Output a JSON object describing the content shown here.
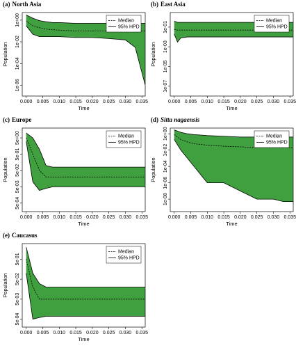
{
  "chart_data": [
    {
      "type": "line",
      "panel_label": "(a)",
      "title": "North Asia",
      "title_italic": false,
      "x_label": "Time",
      "y_label": "Population",
      "log_y": true,
      "legend": "top-right",
      "band_color": "#1f8f1f",
      "x": [
        0,
        0.002,
        0.004,
        0.006,
        0.008,
        0.01,
        0.015,
        0.02,
        0.025,
        0.03,
        0.033,
        0.036
      ],
      "xlim": [
        -0.0012,
        0.036
      ],
      "xticks": [
        {
          "value": 0,
          "label": "0.000"
        },
        {
          "value": 0.005,
          "label": "0.005"
        },
        {
          "value": 0.01,
          "label": "0.010"
        },
        {
          "value": 0.015,
          "label": "0.015"
        },
        {
          "value": 0.02,
          "label": "0.020"
        },
        {
          "value": 0.025,
          "label": "0.025"
        },
        {
          "value": 0.03,
          "label": "0.030"
        },
        {
          "value": 0.035,
          "label": "0.035"
        }
      ],
      "ylim": [
        1e-07,
        5
      ],
      "yticks": [
        {
          "value": 1,
          "label": "1e+00"
        },
        {
          "value": 0.01,
          "label": "1e-02"
        },
        {
          "value": 0.0001,
          "label": "1e-04"
        },
        {
          "value": 1e-06,
          "label": "1e-06"
        }
      ],
      "series": [
        {
          "name": "Median",
          "color": "#000000",
          "dash": true,
          "values": [
            0.8,
            0.3,
            0.2,
            0.15,
            0.13,
            0.12,
            0.1,
            0.1,
            0.1,
            0.1,
            0.1,
            0.1
          ]
        },
        {
          "name": "95% HPD",
          "color": "#000000",
          "dash": false,
          "upper": [
            3,
            1.5,
            0.9,
            0.7,
            0.6,
            0.6,
            0.5,
            0.5,
            0.5,
            0.5,
            0.5,
            0.5
          ],
          "lower": [
            0.3,
            0.05,
            0.03,
            0.03,
            0.03,
            0.03,
            0.025,
            0.025,
            0.02,
            0.015,
            0.003,
            1e-06
          ]
        }
      ]
    },
    {
      "type": "line",
      "panel_label": "(b)",
      "title": "East Asia",
      "title_italic": false,
      "x_label": "Time",
      "y_label": "Population",
      "log_y": true,
      "legend": "top-right",
      "band_color": "#1f8f1f",
      "x": [
        0,
        0.001,
        0.002,
        0.004,
        0.006,
        0.008,
        0.01,
        0.015,
        0.02,
        0.025,
        0.03,
        0.036
      ],
      "xlim": [
        -0.0012,
        0.036
      ],
      "xticks": [
        {
          "value": 0,
          "label": "0.000"
        },
        {
          "value": 0.005,
          "label": "0.005"
        },
        {
          "value": 0.01,
          "label": "0.010"
        },
        {
          "value": 0.015,
          "label": "0.015"
        },
        {
          "value": 0.02,
          "label": "0.020"
        },
        {
          "value": 0.025,
          "label": "0.025"
        },
        {
          "value": 0.03,
          "label": "0.030"
        },
        {
          "value": 0.035,
          "label": "0.035"
        }
      ],
      "ylim": [
        1e-08,
        3
      ],
      "yticks": [
        {
          "value": 0.1,
          "label": "1e-01"
        },
        {
          "value": 0.001,
          "label": "1e-03"
        },
        {
          "value": 1e-05,
          "label": "1e-05"
        },
        {
          "value": 1e-07,
          "label": "1e-07"
        }
      ],
      "series": [
        {
          "name": "Median",
          "color": "#000000",
          "dash": true,
          "values": [
            0.06,
            0.05,
            0.05,
            0.05,
            0.05,
            0.05,
            0.05,
            0.05,
            0.05,
            0.05,
            0.05,
            0.05
          ]
        },
        {
          "name": "95% HPD",
          "color": "#000000",
          "dash": false,
          "upper": [
            0.4,
            0.3,
            0.3,
            0.3,
            0.3,
            0.3,
            0.3,
            0.3,
            0.3,
            0.3,
            0.3,
            0.3
          ],
          "lower": [
            0.02,
            0.003,
            0.008,
            0.01,
            0.01,
            0.01,
            0.01,
            0.01,
            0.01,
            0.01,
            0.01,
            0.01
          ]
        }
      ]
    },
    {
      "type": "line",
      "panel_label": "(c)",
      "title": "Europe",
      "title_italic": false,
      "x_label": "Time",
      "y_label": "Population",
      "log_y": true,
      "legend": "top-right",
      "band_color": "#1f8f1f",
      "x": [
        0,
        0.002,
        0.004,
        0.006,
        0.008,
        0.01,
        0.015,
        0.02,
        0.025,
        0.03,
        0.033,
        0.036
      ],
      "xlim": [
        -0.0012,
        0.036
      ],
      "xticks": [
        {
          "value": 0,
          "label": "0.000"
        },
        {
          "value": 0.005,
          "label": "0.005"
        },
        {
          "value": 0.01,
          "label": "0.010"
        },
        {
          "value": 0.015,
          "label": "0.015"
        },
        {
          "value": 0.02,
          "label": "0.020"
        },
        {
          "value": 0.025,
          "label": "0.025"
        },
        {
          "value": 0.03,
          "label": "0.030"
        },
        {
          "value": 0.035,
          "label": "0.035"
        }
      ],
      "ylim": [
        0.00015,
        20
      ],
      "yticks": [
        {
          "value": 5,
          "label": "5e+00"
        },
        {
          "value": 0.5,
          "label": "5e-01"
        },
        {
          "value": 0.05,
          "label": "5e-02"
        },
        {
          "value": 0.005,
          "label": "5e-03"
        },
        {
          "value": 0.0005,
          "label": "5e-04"
        }
      ],
      "series": [
        {
          "name": "Median",
          "color": "#000000",
          "dash": true,
          "values": [
            5,
            0.5,
            0.05,
            0.02,
            0.02,
            0.02,
            0.02,
            0.02,
            0.02,
            0.02,
            0.02,
            0.02
          ]
        },
        {
          "name": "95% HPD",
          "color": "#000000",
          "dash": false,
          "upper": [
            10,
            5,
            1,
            0.1,
            0.08,
            0.08,
            0.08,
            0.08,
            0.08,
            0.08,
            0.08,
            0.08
          ],
          "lower": [
            3,
            0.01,
            0.003,
            0.004,
            0.005,
            0.005,
            0.005,
            0.005,
            0.005,
            0.005,
            0.005,
            0.005
          ]
        }
      ]
    },
    {
      "type": "line",
      "panel_label": "(d)",
      "title": "Sitta nagaensis",
      "title_italic": true,
      "x_label": "Time",
      "y_label": "Population",
      "log_y": true,
      "legend": "top-right",
      "band_color": "#1f8f1f",
      "x": [
        0,
        0.002,
        0.004,
        0.006,
        0.008,
        0.01,
        0.015,
        0.02,
        0.025,
        0.03,
        0.033,
        0.036
      ],
      "xlim": [
        -0.0012,
        0.036
      ],
      "xticks": [
        {
          "value": 0,
          "label": "0.000"
        },
        {
          "value": 0.005,
          "label": "0.005"
        },
        {
          "value": 0.01,
          "label": "0.010"
        },
        {
          "value": 0.015,
          "label": "0.015"
        },
        {
          "value": 0.02,
          "label": "0.020"
        },
        {
          "value": 0.025,
          "label": "0.025"
        },
        {
          "value": 0.03,
          "label": "0.030"
        },
        {
          "value": 0.035,
          "label": "0.035"
        }
      ],
      "ylim": [
        3e-10,
        5
      ],
      "yticks": [
        {
          "value": 1,
          "label": "1e+00"
        },
        {
          "value": 0.01,
          "label": "1e-02"
        },
        {
          "value": 0.0001,
          "label": "1e-04"
        },
        {
          "value": 1e-06,
          "label": "1e-06"
        },
        {
          "value": 1e-08,
          "label": "1e-08"
        }
      ],
      "series": [
        {
          "name": "Median",
          "color": "#000000",
          "dash": true,
          "values": [
            0.8,
            0.2,
            0.1,
            0.06,
            0.05,
            0.04,
            0.03,
            0.025,
            0.02,
            0.02,
            0.02,
            0.02
          ]
        },
        {
          "name": "95% HPD",
          "color": "#000000",
          "dash": false,
          "upper": [
            3,
            1.5,
            1,
            0.8,
            0.7,
            0.6,
            0.5,
            0.4,
            0.4,
            0.4,
            0.4,
            0.4
          ],
          "lower": [
            0.2,
            0.01,
            0.001,
            0.0001,
            1e-05,
            1e-06,
            1e-06,
            1e-07,
            1e-08,
            1e-08,
            5e-09,
            5e-09
          ]
        }
      ]
    },
    {
      "type": "line",
      "panel_label": "(e)",
      "title": "Caucasus",
      "title_italic": false,
      "x_label": "Time",
      "y_label": "Population",
      "log_y": true,
      "legend": "top-right",
      "band_color": "#1f8f1f",
      "x": [
        0,
        0.002,
        0.004,
        0.006,
        0.008,
        0.01,
        0.015,
        0.02,
        0.025,
        0.03,
        0.033,
        0.036
      ],
      "xlim": [
        -0.0012,
        0.036
      ],
      "xticks": [
        {
          "value": 0,
          "label": "0.000"
        },
        {
          "value": 0.005,
          "label": "0.005"
        },
        {
          "value": 0.01,
          "label": "0.010"
        },
        {
          "value": 0.015,
          "label": "0.015"
        },
        {
          "value": 0.02,
          "label": "0.020"
        },
        {
          "value": 0.025,
          "label": "0.025"
        },
        {
          "value": 0.03,
          "label": "0.030"
        },
        {
          "value": 0.035,
          "label": "0.035"
        }
      ],
      "ylim": [
        0.0002,
        3
      ],
      "yticks": [
        {
          "value": 0.5,
          "label": "5e-01"
        },
        {
          "value": 0.05,
          "label": "5e-02"
        },
        {
          "value": 0.005,
          "label": "5e-03"
        },
        {
          "value": 0.0005,
          "label": "5e-04"
        }
      ],
      "series": [
        {
          "name": "Median",
          "color": "#000000",
          "dash": true,
          "values": [
            0.5,
            0.02,
            0.005,
            0.005,
            0.005,
            0.005,
            0.005,
            0.005,
            0.005,
            0.005,
            0.005,
            0.005
          ]
        },
        {
          "name": "95% HPD",
          "color": "#000000",
          "dash": false,
          "upper": [
            2,
            0.1,
            0.03,
            0.02,
            0.02,
            0.02,
            0.02,
            0.02,
            0.02,
            0.02,
            0.02,
            0.02
          ],
          "lower": [
            0.1,
            0.0005,
            0.0006,
            0.0007,
            0.0007,
            0.0007,
            0.0007,
            0.0007,
            0.0007,
            0.0007,
            0.0007,
            0.0007
          ]
        }
      ]
    }
  ]
}
